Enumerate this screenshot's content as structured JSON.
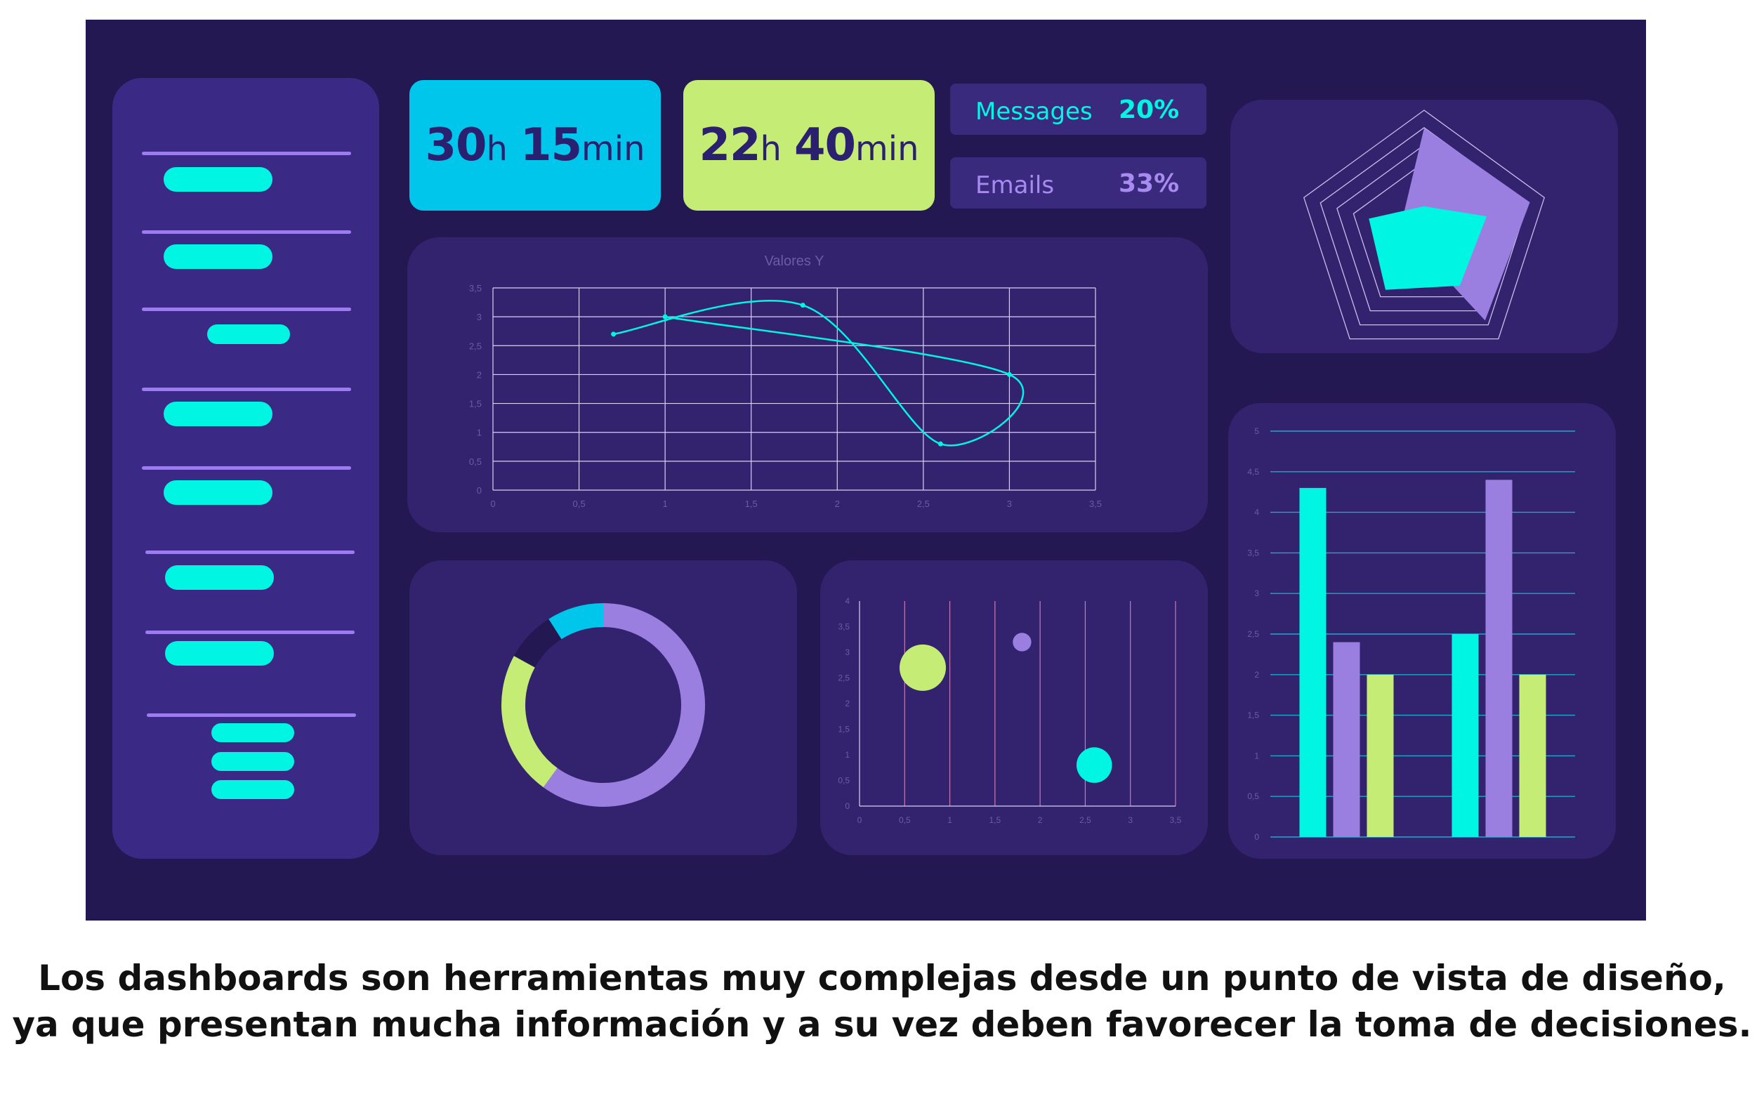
{
  "stats": {
    "time1": {
      "hours": "30",
      "h_unit": "h",
      "minutes": "15",
      "m_unit": "min",
      "color": "#00c6ec"
    },
    "time2": {
      "hours": "22",
      "h_unit": "h",
      "minutes": "40",
      "m_unit": "min",
      "color": "#c5ec74"
    }
  },
  "percent_items": [
    {
      "label": "Messages",
      "value": "20%",
      "label_color": "#00f5e2",
      "value_color": "#00f5e2"
    },
    {
      "label": "Emails",
      "value": "33%",
      "label_color": "#a88bf0",
      "value_color": "#a88bf0"
    }
  ],
  "colors": {
    "cyan": "#00f5e2",
    "lavender": "#9b7fe0",
    "lime": "#c5ec74",
    "sky": "#00c6ec",
    "panel": "#33236f",
    "background": "#231852"
  },
  "chart_data": [
    {
      "type": "scatter",
      "title": "Valores Y",
      "xlim": [
        0,
        3.5
      ],
      "ylim": [
        0,
        3.5
      ],
      "x_ticks": [
        "0",
        "0,5",
        "1",
        "1,5",
        "2",
        "2,5",
        "3",
        "3,5"
      ],
      "y_ticks": [
        "0",
        "0,5",
        "1",
        "1,5",
        "2",
        "2,5",
        "3",
        "3,5"
      ],
      "points": [
        {
          "x": 0.7,
          "y": 2.7
        },
        {
          "x": 1.8,
          "y": 3.2
        },
        {
          "x": 2.6,
          "y": 0.8
        },
        {
          "x": 3.0,
          "y": 2.0
        },
        {
          "x": 1.0,
          "y": 3.0
        }
      ],
      "grid": true
    },
    {
      "type": "radar",
      "axes": 5,
      "rings": 4,
      "max": 5,
      "series": [
        {
          "values": [
            4.3,
            4.4,
            4.1,
            0.5,
            1.0
          ],
          "color": "#9b7fe0"
        },
        {
          "values": [
            1.2,
            2.6,
            2.4,
            2.6,
            2.3
          ],
          "color": "#00f5e2"
        }
      ]
    },
    {
      "type": "pie",
      "variant": "donut",
      "slices": [
        {
          "value": 60,
          "color": "#9b7fe0"
        },
        {
          "value": 23,
          "color": "#c5ec74"
        },
        {
          "value": 8,
          "color": "#231852"
        },
        {
          "value": 9,
          "color": "#00c6ec"
        }
      ]
    },
    {
      "type": "bubble",
      "xlim": [
        0,
        3.5
      ],
      "ylim": [
        0,
        4
      ],
      "x_ticks": [
        "0",
        "0,5",
        "1",
        "1,5",
        "2",
        "2,5",
        "3",
        "3,5"
      ],
      "y_ticks": [
        "0",
        "0,5",
        "1",
        "1,5",
        "2",
        "2,5",
        "3",
        "3,5",
        "4"
      ],
      "points": [
        {
          "x": 0.7,
          "y": 2.7,
          "size": 3,
          "color": "#c5ec74"
        },
        {
          "x": 1.8,
          "y": 3.2,
          "size": 1.2,
          "color": "#9b7fe0"
        },
        {
          "x": 2.6,
          "y": 0.8,
          "size": 2.3,
          "color": "#00f5e2"
        }
      ],
      "grid": "vertical"
    },
    {
      "type": "bar",
      "ylim": [
        0,
        5
      ],
      "y_ticks": [
        "0",
        "0,5",
        "1",
        "1,5",
        "2",
        "2,5",
        "3",
        "3,5",
        "4",
        "4,5",
        "5"
      ],
      "groups": 2,
      "series": [
        {
          "values": [
            4.3,
            2.5
          ],
          "color": "#00f5e2"
        },
        {
          "values": [
            2.4,
            4.4
          ],
          "color": "#9b7fe0"
        },
        {
          "values": [
            2.0,
            2.0
          ],
          "color": "#c5ec74"
        }
      ],
      "grid": true
    }
  ],
  "caption": {
    "line1": "Los dashboards son herramientas muy complejas desde un punto de vista de diseño,",
    "line2": "ya  que presentan mucha información y a su vez deben favorecer la toma de decisiones."
  }
}
